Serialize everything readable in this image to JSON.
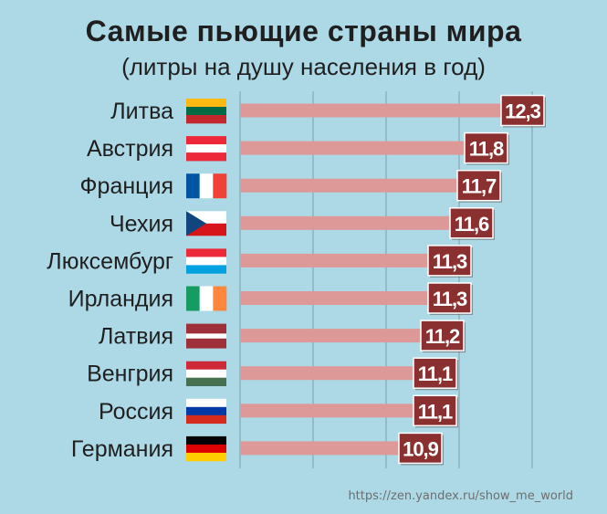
{
  "chart_data": {
    "type": "bar",
    "orientation": "horizontal",
    "title": "Самые пьющие страны мира",
    "subtitle": "(литры на душу населения в год)",
    "categories": [
      "Литва",
      "Австрия",
      "Франция",
      "Чехия",
      "Люксембург",
      "Ирландия",
      "Латвия",
      "Венгрия",
      "Россия",
      "Германия"
    ],
    "values": [
      12.3,
      11.8,
      11.7,
      11.6,
      11.3,
      11.3,
      11.2,
      11.1,
      11.1,
      10.9
    ],
    "value_labels": [
      "12,3",
      "11,8",
      "11,7",
      "11,6",
      "11,3",
      "11,3",
      "11,2",
      "11,1",
      "11,1",
      "10,9"
    ],
    "xlim": [
      8.7,
      12.7
    ],
    "grid": "vertical",
    "bar_color": "#dd9898",
    "label_bg_color": "#8b3030",
    "flags": [
      {
        "country": "Литва",
        "kind": "h",
        "stripes": [
          "#fdb913",
          "#006a44",
          "#c1272d"
        ]
      },
      {
        "country": "Австрия",
        "kind": "h",
        "stripes": [
          "#ed2939",
          "#ffffff",
          "#ed2939"
        ]
      },
      {
        "country": "Франция",
        "kind": "v",
        "stripes": [
          "#0055a4",
          "#ffffff",
          "#ef4135"
        ]
      },
      {
        "country": "Чехия",
        "kind": "czech",
        "stripes": [
          "#ffffff",
          "#d7141a",
          "#11457e"
        ]
      },
      {
        "country": "Люксембург",
        "kind": "h",
        "stripes": [
          "#ed2939",
          "#ffffff",
          "#00a1de"
        ]
      },
      {
        "country": "Ирландия",
        "kind": "v",
        "stripes": [
          "#169b62",
          "#ffffff",
          "#ff883e"
        ]
      },
      {
        "country": "Латвия",
        "kind": "latvia",
        "stripes": [
          "#9e3039",
          "#ffffff",
          "#9e3039"
        ]
      },
      {
        "country": "Венгрия",
        "kind": "h",
        "stripes": [
          "#ce2939",
          "#ffffff",
          "#477050"
        ]
      },
      {
        "country": "Россия",
        "kind": "h",
        "stripes": [
          "#ffffff",
          "#0039a6",
          "#d52b1e"
        ]
      },
      {
        "country": "Германия",
        "kind": "h",
        "stripes": [
          "#000000",
          "#dd0000",
          "#ffce00"
        ]
      }
    ]
  },
  "source": "https://zen.yandex.ru/show_me_world"
}
